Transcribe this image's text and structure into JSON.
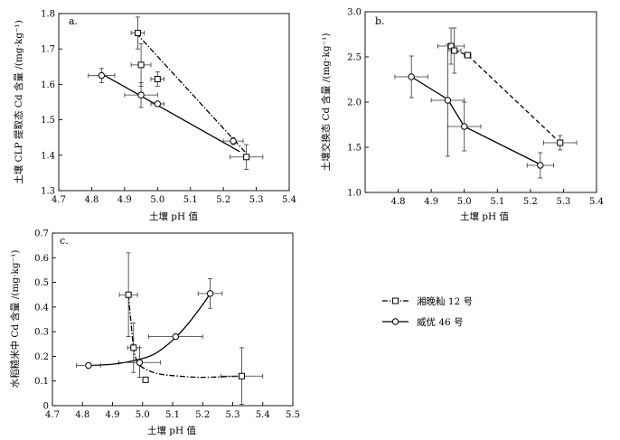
{
  "legend": {
    "entries": [
      {
        "name": "湘晚籼 12 号",
        "marker": "square",
        "line": "dash-dot"
      },
      {
        "name": "威优 46 号",
        "marker": "circle",
        "line": "solid"
      }
    ]
  },
  "chart_data": [
    {
      "type": "scatter",
      "panel_label": "a.",
      "xlabel": "土壤 pH 值",
      "ylabel": "土壤 CLP 提取态 Cd 含量 /(mg·kg⁻¹)",
      "xlim": [
        4.7,
        5.4
      ],
      "ylim": [
        1.3,
        1.8
      ],
      "x_ticks": [
        "4.7",
        "4.8",
        "4.9",
        "5.0",
        "5.1",
        "5.2",
        "5.3",
        "5.4"
      ],
      "y_ticks": [
        "1.3",
        "1.4",
        "1.5",
        "1.6",
        "1.7",
        "1.8"
      ],
      "series": [
        {
          "name": "湘晚籼 12 号",
          "marker": "square",
          "line": "dash-dot",
          "fit": [
            [
              4.935,
              1.745
            ],
            [
              5.27,
              1.405
            ]
          ],
          "points": [
            {
              "x": 4.94,
              "y": 1.745,
              "xerr": 0.02,
              "yerr": 0.045
            },
            {
              "x": 4.95,
              "y": 1.655,
              "xerr": 0.03,
              "yerr": 0.06
            },
            {
              "x": 5.0,
              "y": 1.615,
              "xerr": 0.02,
              "yerr": 0.02
            },
            {
              "x": 5.27,
              "y": 1.395,
              "xerr": 0.05,
              "yerr": 0.035
            }
          ]
        },
        {
          "name": "威优 46 号",
          "marker": "circle",
          "line": "solid",
          "fit": [
            [
              4.83,
              1.63
            ],
            [
              5.25,
              1.41
            ]
          ],
          "points": [
            {
              "x": 4.83,
              "y": 1.625,
              "xerr": 0.04,
              "yerr": 0.02
            },
            {
              "x": 4.95,
              "y": 1.57,
              "xerr": 0.05,
              "yerr": 0.035
            },
            {
              "x": 5.0,
              "y": 1.545,
              "xerr": 0.02,
              "yerr": 0.0
            },
            {
              "x": 5.23,
              "y": 1.44,
              "xerr": 0.03,
              "yerr": 0.01
            }
          ]
        }
      ]
    },
    {
      "type": "scatter",
      "panel_label": "b.",
      "xlabel": "土壤 pH 值",
      "ylabel": "土壤交换态 Cd 含量 /(mg·kg⁻¹)",
      "xlim": [
        4.7,
        5.4
      ],
      "ylim": [
        1.0,
        3.0
      ],
      "x_ticks": [
        "4.8",
        "4.9",
        "5.0",
        "5.1",
        "5.2",
        "5.3",
        "5.4"
      ],
      "y_ticks": [
        "1.0",
        "1.5",
        "2.0",
        "2.5",
        "3.0"
      ],
      "series": [
        {
          "name": "湘晚籼 12 号",
          "marker": "square",
          "line": "dashed",
          "fit": [
            [
              4.97,
              2.57
            ],
            [
              5.01,
              2.52
            ],
            [
              5.29,
              1.55
            ]
          ],
          "points": [
            {
              "x": 4.96,
              "y": 2.62,
              "xerr": 0.04,
              "yerr": 0.2
            },
            {
              "x": 4.97,
              "y": 2.57,
              "xerr": 0.02,
              "yerr": 0.25
            },
            {
              "x": 5.01,
              "y": 2.52,
              "xerr": 0.01,
              "yerr": 0.02
            },
            {
              "x": 5.29,
              "y": 1.55,
              "xerr": 0.05,
              "yerr": 0.08
            }
          ]
        },
        {
          "name": "威优 46 号",
          "marker": "circle",
          "line": "solid",
          "fit": [
            [
              4.84,
              2.28
            ],
            [
              4.95,
              2.03
            ],
            [
              5.0,
              1.73
            ],
            [
              5.23,
              1.31
            ]
          ],
          "points": [
            {
              "x": 4.84,
              "y": 2.28,
              "xerr": 0.05,
              "yerr": 0.23
            },
            {
              "x": 4.95,
              "y": 2.02,
              "xerr": 0.05,
              "yerr": 0.62
            },
            {
              "x": 5.0,
              "y": 1.73,
              "xerr": 0.05,
              "yerr": 0.27
            },
            {
              "x": 5.23,
              "y": 1.3,
              "xerr": 0.04,
              "yerr": 0.14
            }
          ]
        }
      ]
    },
    {
      "type": "scatter",
      "panel_label": "c.",
      "xlabel": "土壤 pH 值",
      "ylabel": "水稻糙米中 Cd 含量 /(mg·kg⁻¹)",
      "xlim": [
        4.7,
        5.5
      ],
      "ylim": [
        0,
        0.7
      ],
      "x_ticks": [
        "4.7",
        "4.8",
        "4.9",
        "5.0",
        "5.1",
        "5.2",
        "5.3",
        "5.4",
        "5.5"
      ],
      "y_ticks": [
        "0",
        "0.1",
        "0.2",
        "0.3",
        "0.4",
        "0.5",
        "0.6",
        "0.7"
      ],
      "series": [
        {
          "name": "湘晚籼 12 号",
          "marker": "square",
          "line": "dash-dot",
          "fit_curve": [
            [
              4.953,
              0.45
            ],
            [
              4.962,
              0.33
            ],
            [
              4.97,
              0.235
            ],
            [
              4.98,
              0.185
            ],
            [
              5.0,
              0.155
            ],
            [
              5.05,
              0.13
            ],
            [
              5.12,
              0.12
            ],
            [
              5.2,
              0.115
            ],
            [
              5.33,
              0.12
            ]
          ],
          "points": [
            {
              "x": 4.953,
              "y": 0.45,
              "xerr": 0.03,
              "yerr": 0.17
            },
            {
              "x": 4.97,
              "y": 0.235,
              "xerr": 0.02,
              "yerr": 0.1
            },
            {
              "x": 5.01,
              "y": 0.105,
              "xerr": 0.0,
              "yerr": 0.0
            },
            {
              "x": 5.33,
              "y": 0.12,
              "xerr": 0.07,
              "yerr": 0.115
            }
          ]
        },
        {
          "name": "威优 46 号",
          "marker": "circle",
          "line": "solid",
          "fit_curve": [
            [
              4.82,
              0.163
            ],
            [
              4.9,
              0.168
            ],
            [
              4.98,
              0.185
            ],
            [
              5.04,
              0.21
            ],
            [
              5.1,
              0.265
            ],
            [
              5.15,
              0.33
            ],
            [
              5.2,
              0.41
            ],
            [
              5.225,
              0.455
            ]
          ],
          "points": [
            {
              "x": 4.82,
              "y": 0.163,
              "xerr": 0.04,
              "yerr": 0.0
            },
            {
              "x": 4.99,
              "y": 0.175,
              "xerr": 0.07,
              "yerr": 0.06
            },
            {
              "x": 5.11,
              "y": 0.28,
              "xerr": 0.09,
              "yerr": 0.0
            },
            {
              "x": 5.225,
              "y": 0.455,
              "xerr": 0.04,
              "yerr": 0.06
            }
          ]
        }
      ]
    }
  ]
}
